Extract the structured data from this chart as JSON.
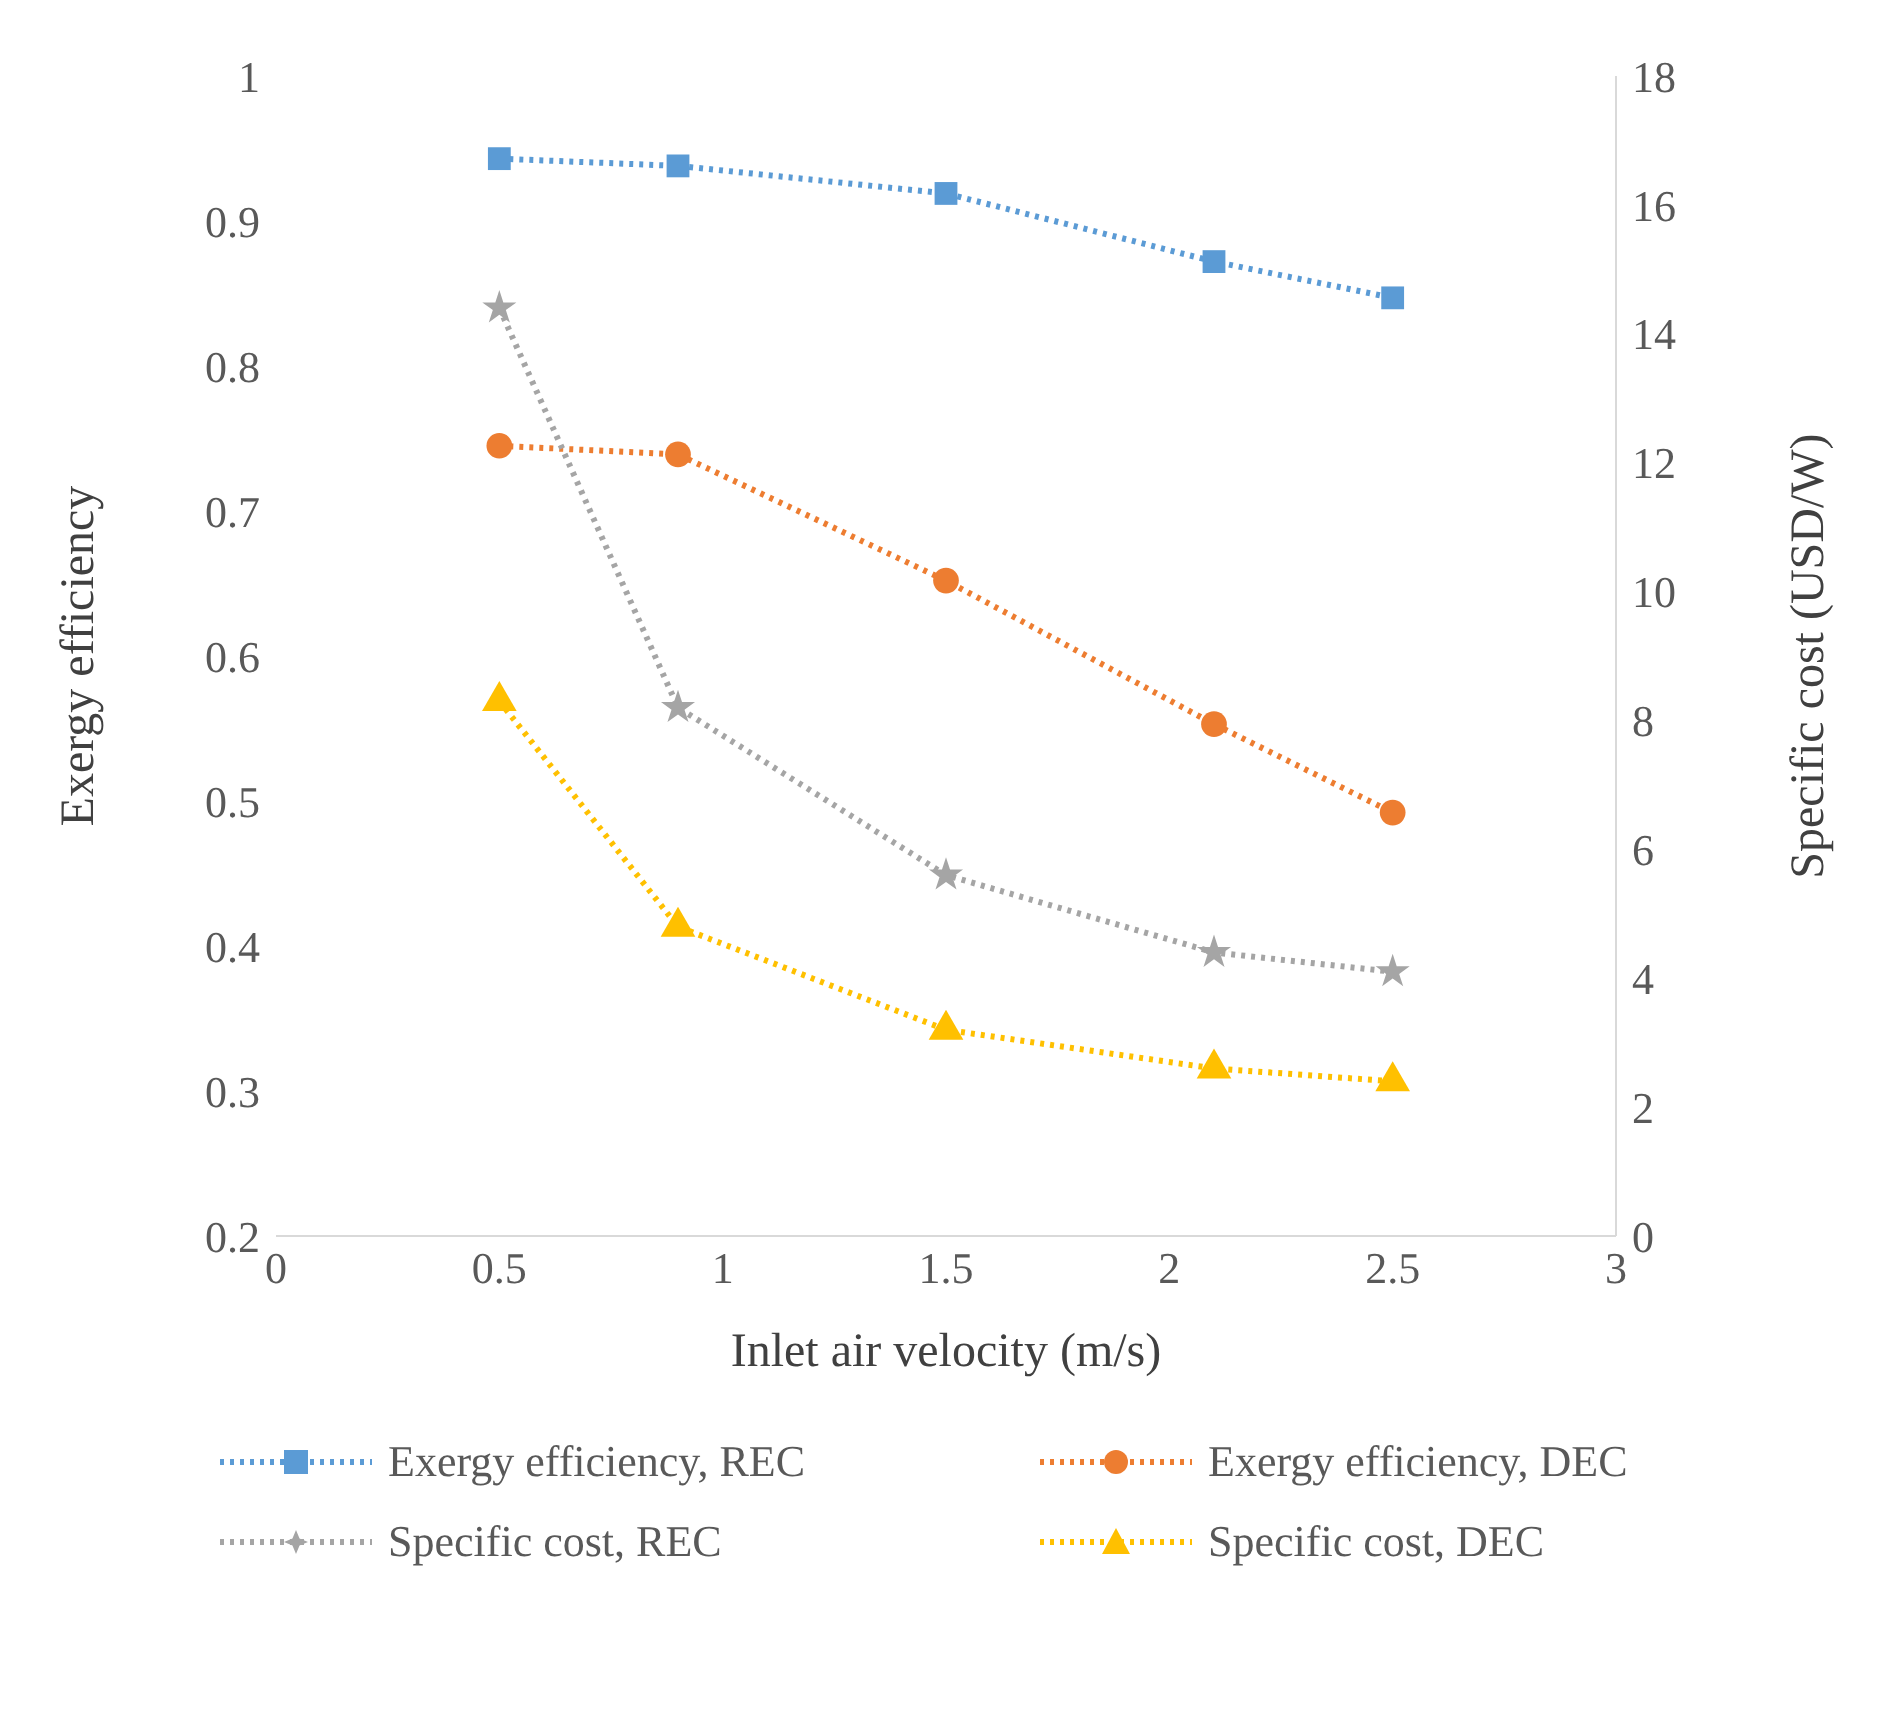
{
  "chart_data": {
    "type": "line",
    "xlabel": "Inlet air velocity (m/s)",
    "ylabel": "Exergy efficiency",
    "y2label": "Specific cost (USD/W)",
    "x": [
      0.5,
      0.9,
      1.5,
      2.1,
      2.5
    ],
    "xlim": [
      0,
      3
    ],
    "xticks": [
      0,
      0.5,
      1,
      1.5,
      2,
      2.5,
      3
    ],
    "ylim": [
      0.2,
      1
    ],
    "yticks": [
      0.2,
      0.3,
      0.4,
      0.5,
      0.6,
      0.7,
      0.8,
      0.9,
      1
    ],
    "y2lim": [
      0,
      18
    ],
    "y2ticks": [
      0,
      2,
      4,
      6,
      8,
      10,
      12,
      14,
      16,
      18
    ],
    "legend": "bottom",
    "line_style": "dotted",
    "series": [
      {
        "name": "Exergy efficiency, REC",
        "color": "#5b9bd5",
        "marker": "square",
        "values": [
          0.943,
          0.938,
          0.919,
          0.872,
          0.847
        ]
      },
      {
        "name": "Exergy efficiency, DEC",
        "color": "#ed7d31",
        "marker": "circle",
        "values": [
          0.745,
          0.739,
          0.652,
          0.553,
          0.492
        ]
      },
      {
        "name": "Specific cost, REC",
        "color": "#a5a5a5",
        "marker": "star",
        "axis": "y2",
        "values": [
          14.4,
          8.2,
          5.6,
          4.4,
          4.1
        ]
      },
      {
        "name": "Specific cost, DEC",
        "color": "#ffc000",
        "marker": "triangle",
        "axis": "y2",
        "values": [
          8.3,
          4.8,
          3.2,
          2.6,
          2.4
        ]
      }
    ]
  }
}
